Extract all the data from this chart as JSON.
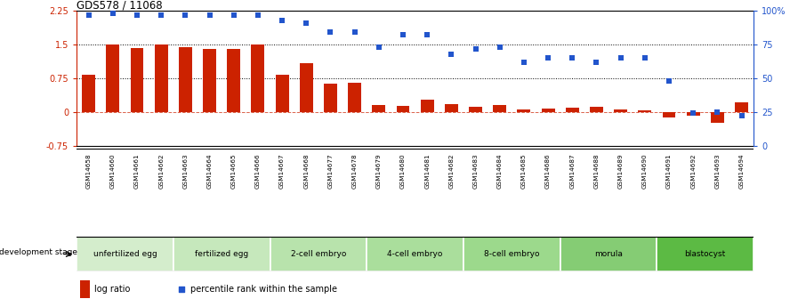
{
  "title": "GDS578 / 11068",
  "samples": [
    "GSM14658",
    "GSM14660",
    "GSM14661",
    "GSM14662",
    "GSM14663",
    "GSM14664",
    "GSM14665",
    "GSM14666",
    "GSM14667",
    "GSM14668",
    "GSM14677",
    "GSM14678",
    "GSM14679",
    "GSM14680",
    "GSM14681",
    "GSM14682",
    "GSM14683",
    "GSM14684",
    "GSM14685",
    "GSM14686",
    "GSM14687",
    "GSM14688",
    "GSM14689",
    "GSM14690",
    "GSM14691",
    "GSM14692",
    "GSM14693",
    "GSM14694"
  ],
  "log_ratio": [
    0.82,
    1.5,
    1.42,
    1.5,
    1.44,
    1.4,
    1.4,
    1.5,
    0.82,
    1.08,
    0.64,
    0.65,
    0.15,
    0.13,
    0.27,
    0.17,
    0.11,
    0.16,
    0.06,
    0.07,
    0.09,
    0.11,
    0.05,
    0.03,
    -0.12,
    -0.08,
    -0.24,
    0.22
  ],
  "percentile": [
    97,
    98,
    97,
    97,
    97,
    97,
    97,
    97,
    93,
    91,
    84,
    84,
    73,
    82,
    82,
    68,
    72,
    73,
    62,
    65,
    65,
    62,
    65,
    65,
    48,
    24,
    25,
    22
  ],
  "bar_color": "#cc2200",
  "dot_color": "#2255cc",
  "ylim_left": [
    -0.75,
    2.25
  ],
  "ylim_right": [
    0,
    100
  ],
  "yticks_left": [
    -0.75,
    0.0,
    0.75,
    1.5,
    2.25
  ],
  "yticklabels_left": [
    "-0.75",
    "0",
    "0.75",
    "1.5",
    "2.25"
  ],
  "yticks_right": [
    0,
    25,
    50,
    75,
    100
  ],
  "yticklabels_right": [
    "0",
    "25",
    "50",
    "75",
    "100%"
  ],
  "hlines": [
    0.75,
    1.5
  ],
  "zero_line": 0.0,
  "stage_groups": [
    {
      "label": "unfertilized egg",
      "start": 0,
      "end": 4,
      "color": "#d4edcc"
    },
    {
      "label": "fertilized egg",
      "start": 4,
      "end": 8,
      "color": "#c6e8bc"
    },
    {
      "label": "2-cell embryo",
      "start": 8,
      "end": 12,
      "color": "#b8e3ac"
    },
    {
      "label": "4-cell embryo",
      "start": 12,
      "end": 16,
      "color": "#aade9c"
    },
    {
      "label": "8-cell embryo",
      "start": 16,
      "end": 20,
      "color": "#9cd98c"
    },
    {
      "label": "morula",
      "start": 20,
      "end": 24,
      "color": "#85cc74"
    },
    {
      "label": "blastocyst",
      "start": 24,
      "end": 28,
      "color": "#5cba44"
    }
  ],
  "sample_bg_color": "#d8d8d8",
  "dev_stage_label": "development stage",
  "legend_log": "log ratio",
  "legend_pct": "percentile rank within the sample",
  "bar_color_legend": "#cc2200",
  "dot_color_legend": "#2255cc"
}
